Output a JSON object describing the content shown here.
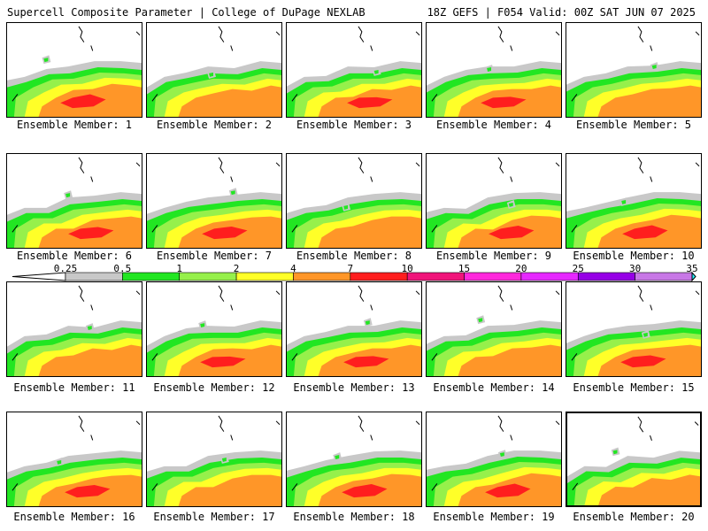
{
  "header": {
    "left_title": "Supercell Composite Parameter | College of DuPage NEXLAB",
    "right_title": "18Z GEFS | F054 Valid: 00Z SAT JUN 07 2025"
  },
  "caption_prefix": "Ensemble Member: ",
  "members": [
    1,
    2,
    3,
    4,
    5,
    6,
    7,
    8,
    9,
    10,
    11,
    12,
    13,
    14,
    15,
    16,
    17,
    18,
    19,
    20
  ],
  "selected_member": 20,
  "colorbar": {
    "labels": [
      "0.25",
      "0.5",
      "1",
      "2",
      "4",
      "7",
      "10",
      "15",
      "20",
      "25",
      "30",
      "35"
    ],
    "colors": [
      "#ffffff",
      "#c8c8c8",
      "#22e622",
      "#96f04b",
      "#ffff28",
      "#ff9628",
      "#ff1e1e",
      "#f0147a",
      "#ff28dc",
      "#e628ff",
      "#9600e6",
      "#c878e6",
      "#28f0ff"
    ]
  }
}
